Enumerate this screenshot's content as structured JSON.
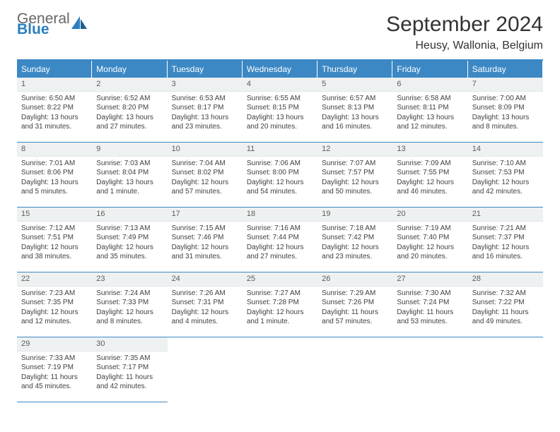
{
  "logo": {
    "line1": "General",
    "line2": "Blue"
  },
  "title": "September 2024",
  "location": "Heusy, Wallonia, Belgium",
  "colors": {
    "header_bg": "#3b88c4",
    "header_text": "#ffffff",
    "daynum_bg": "#eef1f2",
    "cell_border": "#3b88c4",
    "body_text": "#404040",
    "logo_gray": "#666666",
    "logo_blue": "#2a7fbf"
  },
  "weekdays": [
    "Sunday",
    "Monday",
    "Tuesday",
    "Wednesday",
    "Thursday",
    "Friday",
    "Saturday"
  ],
  "days": [
    {
      "n": "1",
      "sr": "6:50 AM",
      "ss": "8:22 PM",
      "dl": "13 hours and 31 minutes."
    },
    {
      "n": "2",
      "sr": "6:52 AM",
      "ss": "8:20 PM",
      "dl": "13 hours and 27 minutes."
    },
    {
      "n": "3",
      "sr": "6:53 AM",
      "ss": "8:17 PM",
      "dl": "13 hours and 23 minutes."
    },
    {
      "n": "4",
      "sr": "6:55 AM",
      "ss": "8:15 PM",
      "dl": "13 hours and 20 minutes."
    },
    {
      "n": "5",
      "sr": "6:57 AM",
      "ss": "8:13 PM",
      "dl": "13 hours and 16 minutes."
    },
    {
      "n": "6",
      "sr": "6:58 AM",
      "ss": "8:11 PM",
      "dl": "13 hours and 12 minutes."
    },
    {
      "n": "7",
      "sr": "7:00 AM",
      "ss": "8:09 PM",
      "dl": "13 hours and 8 minutes."
    },
    {
      "n": "8",
      "sr": "7:01 AM",
      "ss": "8:06 PM",
      "dl": "13 hours and 5 minutes."
    },
    {
      "n": "9",
      "sr": "7:03 AM",
      "ss": "8:04 PM",
      "dl": "13 hours and 1 minute."
    },
    {
      "n": "10",
      "sr": "7:04 AM",
      "ss": "8:02 PM",
      "dl": "12 hours and 57 minutes."
    },
    {
      "n": "11",
      "sr": "7:06 AM",
      "ss": "8:00 PM",
      "dl": "12 hours and 54 minutes."
    },
    {
      "n": "12",
      "sr": "7:07 AM",
      "ss": "7:57 PM",
      "dl": "12 hours and 50 minutes."
    },
    {
      "n": "13",
      "sr": "7:09 AM",
      "ss": "7:55 PM",
      "dl": "12 hours and 46 minutes."
    },
    {
      "n": "14",
      "sr": "7:10 AM",
      "ss": "7:53 PM",
      "dl": "12 hours and 42 minutes."
    },
    {
      "n": "15",
      "sr": "7:12 AM",
      "ss": "7:51 PM",
      "dl": "12 hours and 38 minutes."
    },
    {
      "n": "16",
      "sr": "7:13 AM",
      "ss": "7:49 PM",
      "dl": "12 hours and 35 minutes."
    },
    {
      "n": "17",
      "sr": "7:15 AM",
      "ss": "7:46 PM",
      "dl": "12 hours and 31 minutes."
    },
    {
      "n": "18",
      "sr": "7:16 AM",
      "ss": "7:44 PM",
      "dl": "12 hours and 27 minutes."
    },
    {
      "n": "19",
      "sr": "7:18 AM",
      "ss": "7:42 PM",
      "dl": "12 hours and 23 minutes."
    },
    {
      "n": "20",
      "sr": "7:19 AM",
      "ss": "7:40 PM",
      "dl": "12 hours and 20 minutes."
    },
    {
      "n": "21",
      "sr": "7:21 AM",
      "ss": "7:37 PM",
      "dl": "12 hours and 16 minutes."
    },
    {
      "n": "22",
      "sr": "7:23 AM",
      "ss": "7:35 PM",
      "dl": "12 hours and 12 minutes."
    },
    {
      "n": "23",
      "sr": "7:24 AM",
      "ss": "7:33 PM",
      "dl": "12 hours and 8 minutes."
    },
    {
      "n": "24",
      "sr": "7:26 AM",
      "ss": "7:31 PM",
      "dl": "12 hours and 4 minutes."
    },
    {
      "n": "25",
      "sr": "7:27 AM",
      "ss": "7:28 PM",
      "dl": "12 hours and 1 minute."
    },
    {
      "n": "26",
      "sr": "7:29 AM",
      "ss": "7:26 PM",
      "dl": "11 hours and 57 minutes."
    },
    {
      "n": "27",
      "sr": "7:30 AM",
      "ss": "7:24 PM",
      "dl": "11 hours and 53 minutes."
    },
    {
      "n": "28",
      "sr": "7:32 AM",
      "ss": "7:22 PM",
      "dl": "11 hours and 49 minutes."
    },
    {
      "n": "29",
      "sr": "7:33 AM",
      "ss": "7:19 PM",
      "dl": "11 hours and 45 minutes."
    },
    {
      "n": "30",
      "sr": "7:35 AM",
      "ss": "7:17 PM",
      "dl": "11 hours and 42 minutes."
    }
  ],
  "labels": {
    "sunrise": "Sunrise: ",
    "sunset": "Sunset: ",
    "daylight": "Daylight: "
  }
}
